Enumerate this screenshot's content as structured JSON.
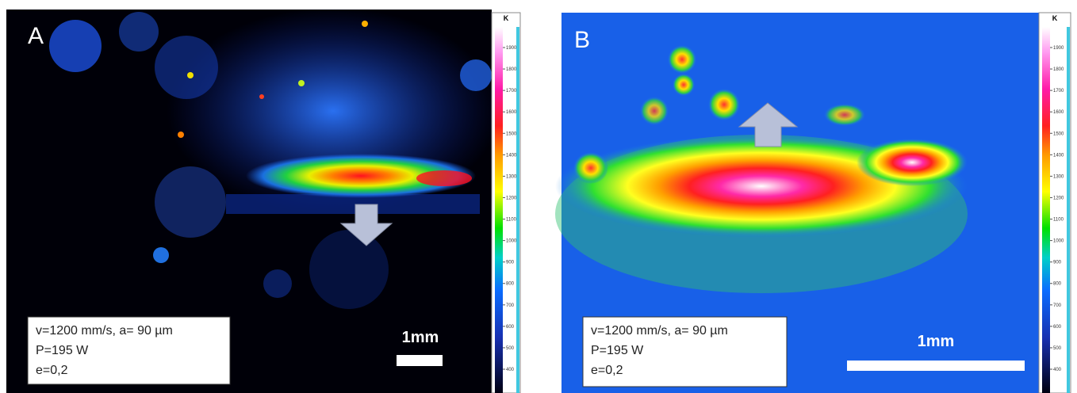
{
  "panels": [
    {
      "label": "A",
      "info": [
        "v=1200 mm/s,  a= 90 µm",
        "P=195 W",
        "e=0,2"
      ],
      "scale": "1mm",
      "colorbar": {
        "unit": "K",
        "ticks": [
          1900,
          1800,
          1700,
          1600,
          1500,
          1400,
          1300,
          1200,
          1100,
          1000,
          900,
          800,
          700,
          600,
          500,
          400
        ]
      }
    },
    {
      "label": "B",
      "info": [
        "v=1200 mm/s,  a= 90 µm",
        "P=195 W",
        "e=0,2"
      ],
      "scale": "1mm",
      "colorbar": {
        "unit": "K",
        "ticks": [
          1900,
          1800,
          1700,
          1600,
          1500,
          1400,
          1300,
          1200,
          1100,
          1000,
          900,
          800,
          700,
          600,
          500,
          400
        ]
      }
    }
  ]
}
